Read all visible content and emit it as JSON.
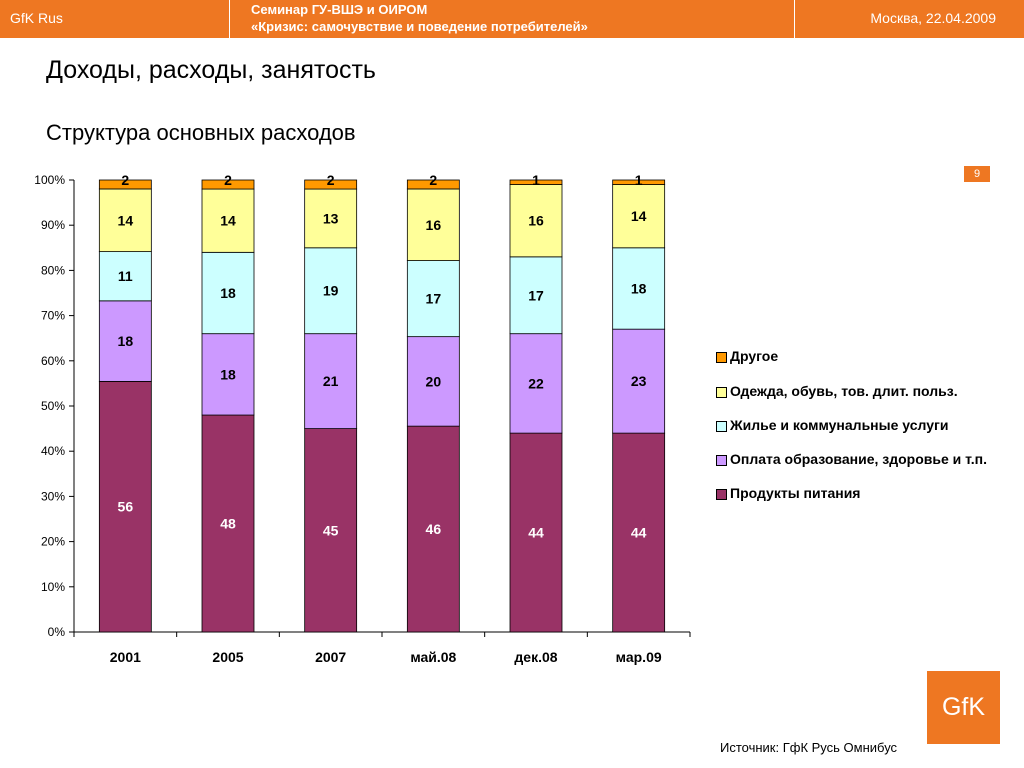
{
  "header": {
    "brand": "GfK Rus",
    "seminar_line1": "Семинар ГУ-ВШЭ и ОИРОМ",
    "seminar_line2": "«Кризис: самочувствие и поведение потребителей»",
    "place_date": "Москва, 22.04.2009"
  },
  "title": "Доходы, расходы, занятость",
  "subtitle": "Структура основных расходов",
  "page_number": "9",
  "source": "Источник: ГфК Русь Омнибус",
  "logo_text": "GfK",
  "colors": {
    "brand_orange": "#ee7722",
    "food": "#993366",
    "education_health": "#cc99ff",
    "housing": "#ccffff",
    "clothing": "#ffff99",
    "other": "#ff9900"
  },
  "chart_data": {
    "type": "bar",
    "stacked": true,
    "normalized": true,
    "categories": [
      "2001",
      "2005",
      "2007",
      "май.08",
      "дек.08",
      "мар.09"
    ],
    "y_ticks": [
      "0%",
      "10%",
      "20%",
      "30%",
      "40%",
      "50%",
      "60%",
      "70%",
      "80%",
      "90%",
      "100%"
    ],
    "ylim": [
      0,
      100
    ],
    "legend_position": "right",
    "series": [
      {
        "name": "Продукты питания",
        "color": "#993366",
        "label_color": "#ffffff",
        "values": [
          56,
          48,
          45,
          46,
          44,
          44
        ]
      },
      {
        "name": "Оплата образование, здоровье и т.п.",
        "color": "#cc99ff",
        "label_color": "#000000",
        "values": [
          18,
          18,
          21,
          20,
          22,
          23
        ]
      },
      {
        "name": "Жилье и коммунальные услуги",
        "color": "#ccffff",
        "label_color": "#000000",
        "values": [
          11,
          18,
          19,
          17,
          17,
          18
        ]
      },
      {
        "name": "Одежда, обувь, тов. длит. польз.",
        "color": "#ffff99",
        "label_color": "#000000",
        "values": [
          14,
          14,
          13,
          16,
          16,
          14
        ]
      },
      {
        "name": "Другое",
        "color": "#ff9900",
        "label_color": "#000000",
        "values": [
          2,
          2,
          2,
          2,
          1,
          1
        ]
      }
    ]
  }
}
